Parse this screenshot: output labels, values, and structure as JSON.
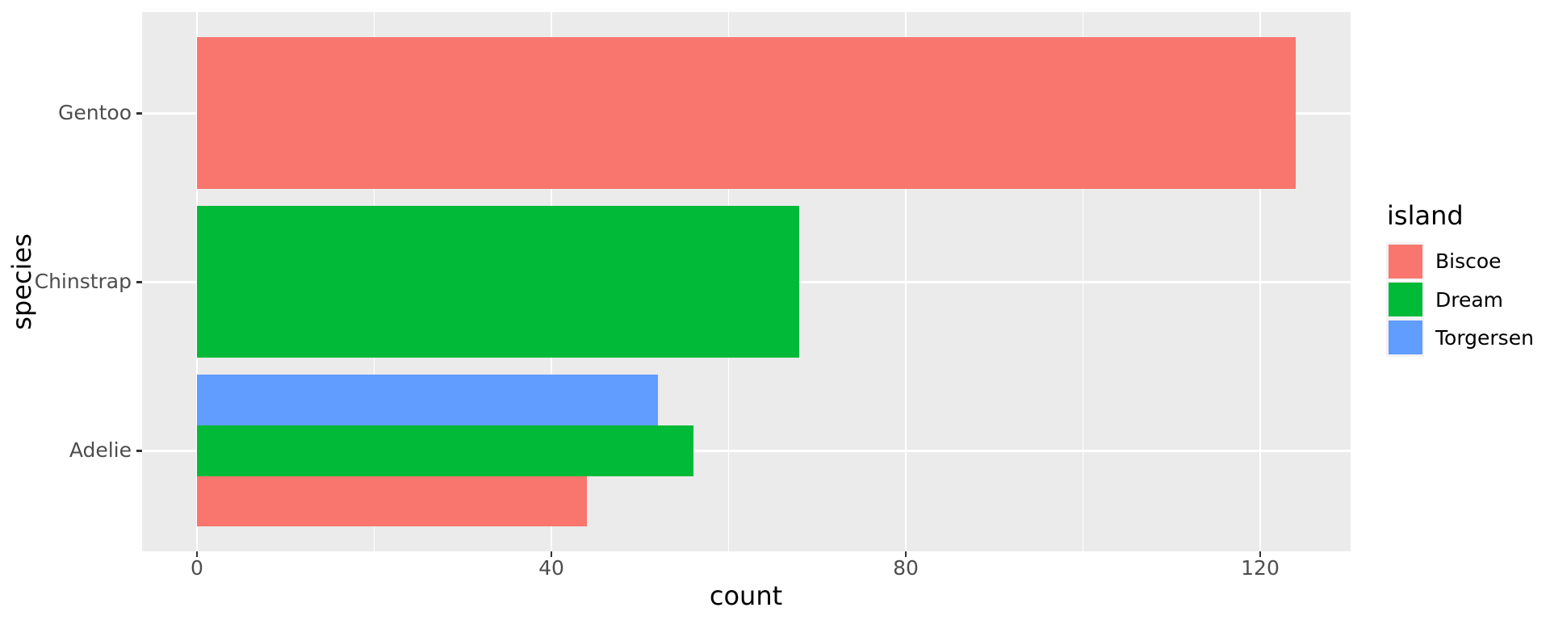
{
  "chart": {
    "x_axis": {
      "title": "count",
      "tick_labels": [
        "0",
        "40",
        "80",
        "120"
      ],
      "ticks": [
        0,
        40,
        80,
        120
      ],
      "minor_ticks": [
        20,
        60,
        100
      ]
    },
    "y_axis": {
      "title": "species",
      "categories": [
        "Gentoo",
        "Chinstrap",
        "Adelie"
      ]
    },
    "legend": {
      "title": "island",
      "entries": [
        {
          "label": "Biscoe",
          "color": "#F8766D"
        },
        {
          "label": "Dream",
          "color": "#00BA38"
        },
        {
          "label": "Torgersen",
          "color": "#619CFF"
        }
      ]
    },
    "colors": {
      "panel_background": "#EBEBEB",
      "gridline": "#FFFFFF",
      "axis_text": "#4D4D4D",
      "tick_mark": "#333333",
      "legend_key_background": "#F2F2F2",
      "page_background": "#FFFFFF"
    }
  },
  "chart_data": {
    "type": "bar",
    "orientation": "horizontal",
    "title": "",
    "xlabel": "count",
    "ylabel": "species",
    "xlim": [
      -6.2,
      130.2
    ],
    "grid": true,
    "legend_title": "island",
    "legend_position": "right",
    "categories": [
      "Gentoo",
      "Chinstrap",
      "Adelie"
    ],
    "series": [
      {
        "name": "Biscoe",
        "color": "#F8766D",
        "values": [
          124,
          null,
          44
        ]
      },
      {
        "name": "Dream",
        "color": "#00BA38",
        "values": [
          null,
          68,
          56
        ]
      },
      {
        "name": "Torgersen",
        "color": "#619CFF",
        "values": [
          null,
          null,
          52
        ]
      }
    ]
  }
}
